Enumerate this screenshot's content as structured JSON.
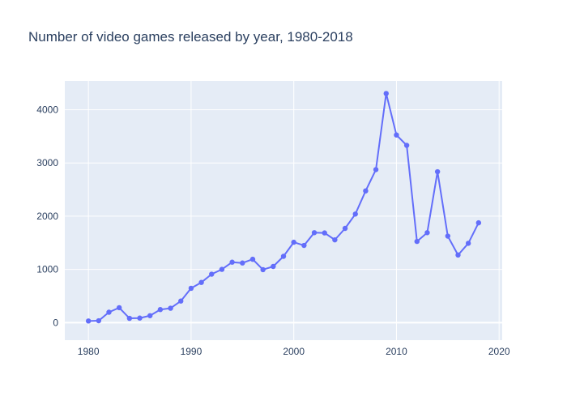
{
  "chart_data": {
    "type": "line",
    "title": "Number of video games released by year, 1980-2018",
    "xlabel": "",
    "ylabel": "",
    "xlim": [
      1977.7,
      2020.3
    ],
    "ylim": [
      -330,
      4540
    ],
    "x_ticks": [
      1980,
      1990,
      2000,
      2010,
      2020
    ],
    "y_ticks": [
      0,
      1000,
      2000,
      3000,
      4000
    ],
    "x_tick_labels": [
      "1980",
      "1990",
      "2000",
      "2010",
      "2020"
    ],
    "y_tick_labels": [
      "0",
      "1000",
      "2000",
      "3000",
      "4000"
    ],
    "grid": true,
    "legend": "none",
    "colors": {
      "line": "#636efa",
      "plot_background": "#e5ecf6",
      "grid": "#ffffff",
      "text": "#2a3f5f"
    },
    "series": [
      {
        "x": [
          1980,
          1981,
          1982,
          1983,
          1984,
          1985,
          1986,
          1987,
          1988,
          1989,
          1990,
          1991,
          1992,
          1993,
          1994,
          1995,
          1996,
          1997,
          1998,
          1999,
          2000,
          2001,
          2002,
          2003,
          2004,
          2005,
          2006,
          2007,
          2008,
          2009,
          2010,
          2011,
          2012,
          2013,
          2014,
          2015,
          2016,
          2017,
          2018
        ],
        "y": [
          30,
          35,
          195,
          280,
          80,
          85,
          130,
          245,
          270,
          405,
          645,
          755,
          910,
          1000,
          1135,
          1120,
          1190,
          995,
          1055,
          1245,
          1510,
          1450,
          1690,
          1685,
          1555,
          1770,
          2040,
          2475,
          2875,
          4305,
          3525,
          3330,
          1525,
          1690,
          2835,
          1625,
          1270,
          1490,
          1875
        ]
      }
    ]
  }
}
